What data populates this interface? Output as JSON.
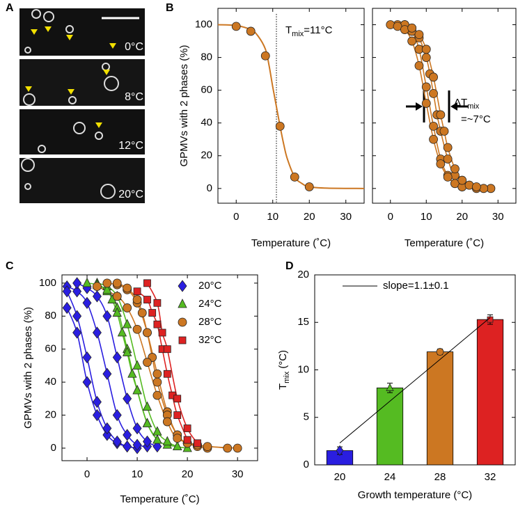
{
  "chart_data": [
    {
      "type": "image",
      "label": "A",
      "panels": [
        "0°C",
        "8°C",
        "12°C",
        "20°C"
      ]
    },
    {
      "type": "line",
      "label": "B",
      "ylabel": "GPMVs with 2 phases (%)",
      "xlabel": "Temperature (˚C)",
      "xlim": [
        -5,
        35
      ],
      "ylim": [
        -9,
        110
      ],
      "xticks": [
        0,
        10,
        20,
        30
      ],
      "yticks": [
        0,
        20,
        40,
        60,
        80,
        100
      ],
      "vline": 11,
      "annotation": [
        "T",
        "mix",
        "=11°C"
      ],
      "fit": {
        "x": [
          -5,
          0,
          4,
          6,
          8,
          9,
          10,
          11,
          12,
          13,
          14,
          16,
          18,
          20,
          25,
          35
        ],
        "values": [
          100,
          99.5,
          97,
          93,
          85,
          75,
          62,
          50,
          38,
          27,
          18,
          7,
          3,
          1,
          0.2,
          0
        ]
      },
      "series": [
        {
          "color": "#cc7722",
          "marker": "circle",
          "curves": [
            {
              "x": [
                0,
                4,
                8,
                12,
                16,
                20
              ],
              "values": [
                99,
                96,
                81,
                38,
                7,
                1
              ]
            }
          ]
        }
      ]
    },
    {
      "type": "line",
      "xlabel": "Temperature (˚C)",
      "xlim": [
        -5,
        35
      ],
      "ylim": [
        -9,
        110
      ],
      "xticks": [
        0,
        10,
        20,
        30
      ],
      "yticks": [
        0,
        20,
        40,
        60,
        80,
        100
      ],
      "annotation": [
        "ΔT",
        "mix",
        "=~7°C"
      ],
      "series": [
        {
          "color": "#cc7722",
          "marker": "circle",
          "curves": [
            {
              "x": [
                2,
                4,
                6,
                8,
                10,
                12,
                14,
                16,
                18,
                20,
                24
              ],
              "values": [
                100,
                100,
                96,
                85,
                62,
                38,
                18,
                8,
                3,
                1,
                0
              ]
            },
            {
              "x": [
                4,
                6,
                8,
                10,
                11,
                12,
                13,
                14,
                16,
                18,
                22,
                28
              ],
              "values": [
                100,
                98,
                92,
                80,
                70,
                58,
                45,
                35,
                18,
                8,
                2,
                0
              ]
            },
            {
              "x": [
                0,
                2,
                4,
                6,
                8,
                10,
                12,
                14,
                16,
                18,
                20,
                26
              ],
              "values": [
                100,
                99,
                97,
                90,
                75,
                52,
                30,
                15,
                7,
                3,
                1,
                0
              ]
            },
            {
              "x": [
                6,
                8,
                10,
                12,
                14,
                15,
                16,
                18,
                20,
                22,
                24
              ],
              "values": [
                98,
                94,
                85,
                68,
                45,
                35,
                25,
                12,
                5,
                2,
                1
              ]
            }
          ]
        }
      ]
    },
    {
      "type": "line",
      "label": "C",
      "ylabel": "GPMVs with 2 phases (%)",
      "xlabel": "Temperature (˚C)",
      "xlim": [
        -5,
        34
      ],
      "ylim": [
        -7.6,
        105
      ],
      "xticks": [
        0,
        10,
        20,
        30
      ],
      "yticks": [
        0,
        20,
        40,
        60,
        80,
        100
      ],
      "legend": "upper right",
      "series": [
        {
          "name": "20°C",
          "color": "#2a1ee0",
          "marker": "diamond",
          "curves": [
            {
              "x": [
                -4,
                -2,
                0,
                2,
                4,
                6,
                8,
                10
              ],
              "values": [
                85,
                70,
                40,
                20,
                8,
                3,
                1,
                0
              ]
            },
            {
              "x": [
                -4,
                -2,
                0,
                2,
                4,
                6,
                8,
                10,
                12
              ],
              "values": [
                98,
                95,
                88,
                70,
                45,
                20,
                8,
                2,
                1
              ]
            },
            {
              "x": [
                -2,
                0,
                2,
                4,
                6,
                8,
                10,
                12,
                14
              ],
              "values": [
                100,
                97,
                92,
                80,
                55,
                30,
                12,
                4,
                1
              ]
            },
            {
              "x": [
                -4,
                -2,
                0,
                2,
                4,
                6,
                8
              ],
              "values": [
                95,
                80,
                55,
                28,
                12,
                4,
                1
              ]
            }
          ]
        },
        {
          "name": "24°C",
          "color": "#55bb22",
          "marker": "triangle",
          "curves": [
            {
              "x": [
                0,
                2,
                4,
                6,
                8,
                10,
                12,
                14,
                16,
                18
              ],
              "values": [
                100,
                99,
                95,
                85,
                60,
                35,
                15,
                5,
                2,
                1
              ]
            },
            {
              "x": [
                2,
                4,
                6,
                8,
                10,
                12,
                14,
                16,
                18,
                20
              ],
              "values": [
                100,
                98,
                92,
                75,
                50,
                25,
                10,
                4,
                1,
                0
              ]
            },
            {
              "x": [
                2,
                4,
                5,
                6,
                7,
                8,
                9,
                10,
                12,
                14
              ],
              "values": [
                99,
                96,
                90,
                82,
                70,
                58,
                45,
                35,
                15,
                5
              ]
            }
          ]
        },
        {
          "name": "28°C",
          "color": "#cc7722",
          "marker": "circle",
          "curves": [
            {
              "x": [
                4,
                6,
                8,
                10,
                12,
                14,
                16,
                18,
                20,
                22,
                24
              ],
              "values": [
                100,
                99,
                96,
                88,
                70,
                45,
                22,
                8,
                3,
                1,
                0
              ]
            },
            {
              "x": [
                6,
                8,
                10,
                11,
                12,
                13,
                14,
                16,
                18,
                20,
                24,
                30
              ],
              "values": [
                100,
                97,
                90,
                82,
                70,
                55,
                40,
                20,
                8,
                3,
                1,
                0
              ]
            },
            {
              "x": [
                2,
                6,
                8,
                10,
                12,
                14,
                16,
                18,
                22,
                28
              ],
              "values": [
                98,
                92,
                85,
                72,
                52,
                32,
                16,
                6,
                2,
                0
              ]
            }
          ]
        },
        {
          "name": "32°C",
          "color": "#dd2222",
          "marker": "square",
          "curves": [
            {
              "x": [
                10,
                12,
                13,
                14,
                15,
                16,
                17,
                18,
                20
              ],
              "values": [
                95,
                90,
                82,
                75,
                60,
                45,
                32,
                20,
                5
              ]
            },
            {
              "x": [
                12,
                14,
                15,
                16,
                18,
                20,
                22
              ],
              "values": [
                100,
                88,
                70,
                60,
                30,
                12,
                3
              ]
            }
          ]
        }
      ]
    },
    {
      "type": "bar",
      "label": "D",
      "ylabel": [
        "T",
        "mix",
        "(°C)"
      ],
      "xlabel": "Growth temperature (°C)",
      "categories": [
        "20",
        "24",
        "28",
        "32"
      ],
      "values": [
        1.5,
        8.1,
        11.9,
        15.3
      ],
      "errors": [
        0.4,
        0.5,
        0.3,
        0.5
      ],
      "colors": [
        "#2a1ee0",
        "#55bb22",
        "#cc7722",
        "#dd2222"
      ],
      "markers": [
        "diamond",
        "triangle",
        "circle",
        "square"
      ],
      "ylim": [
        0,
        20
      ],
      "yticks": [
        0,
        5,
        10,
        15,
        20
      ],
      "fit": {
        "name": "slope=1.1±0.1",
        "values": [
          2.3,
          6.7,
          11.1,
          15.5
        ]
      }
    }
  ]
}
